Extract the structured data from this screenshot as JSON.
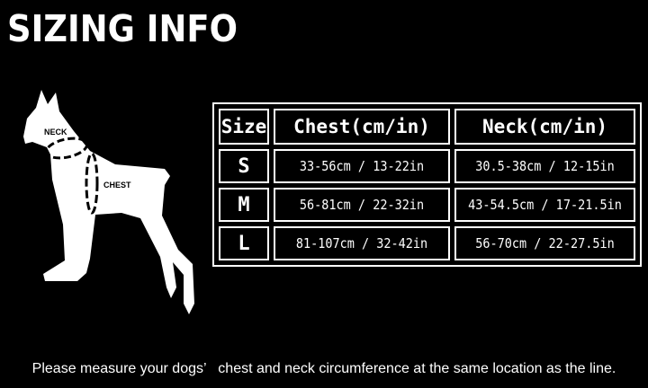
{
  "title": "SIZING INFO",
  "diagram": {
    "neck_label": "NECK",
    "chest_label": "CHEST"
  },
  "table": {
    "headers": [
      "Size",
      "Chest(cm/in)",
      "Neck(cm/in)"
    ],
    "rows": [
      {
        "size": "S",
        "chest": "33-56cm / 13-22in",
        "neck": "30.5-38cm / 12-15in"
      },
      {
        "size": "M",
        "chest": "56-81cm / 22-32in",
        "neck": "43-54.5cm / 17-21.5in"
      },
      {
        "size": "L",
        "chest": "81-107cm / 32-42in",
        "neck": "56-70cm / 22-27.5in"
      }
    ]
  },
  "note": "Please measure your dogs’   chest and neck circumference at the same location as the line.",
  "colors": {
    "background": "#000000",
    "foreground": "#ffffff"
  }
}
